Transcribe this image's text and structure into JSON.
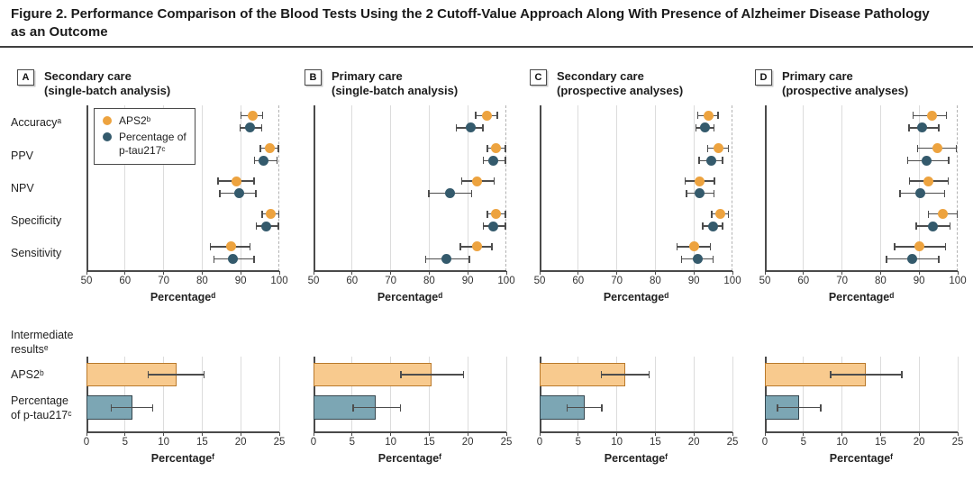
{
  "figure": {
    "title": "Figure 2. Performance Comparison of the Blood Tests Using the 2 Cutoff-Value Approach Along With Presence of Alzheimer Disease Pathology\nas an Outcome"
  },
  "legend": {
    "items": [
      {
        "label": "APS2ᵇ",
        "series": "aps2"
      },
      {
        "label": "Percentage of\np-tau217ᶜ",
        "series": "ptau217"
      }
    ]
  },
  "labels": {
    "metrics": [
      "Accuracyᵃ",
      "PPV",
      "NPV",
      "Specificity",
      "Sensitivity"
    ],
    "intermediate": "Intermediate\nresultsᵉ",
    "bar_rows": [
      "APS2ᵇ",
      "Percentage\nof p-tau217ᶜ"
    ]
  },
  "colors": {
    "aps2": "#EDA33F",
    "ptau217": "#345A6C",
    "bar_aps2_fill": "#F8CA8E",
    "bar_aps2_border": "#B9792B",
    "bar_ptau_fill": "#7CA6B4",
    "bar_ptau_border": "#34454D",
    "error_bar": "#4D4D4D",
    "grid": "#DCDCDC",
    "dashed_line": "#B3B3B3",
    "axis": "#4A4A4A"
  },
  "chart_data": [
    {
      "type": "scatter",
      "subtype": "dot-with-ci",
      "panel_letter": "A",
      "title": "Secondary care\n(single-batch analysis)",
      "xlabel": "Percentageᵈ",
      "xlim": [
        50,
        100
      ],
      "xticks": [
        50,
        60,
        70,
        80,
        90,
        100
      ],
      "dashed_line_at": 100,
      "categories": [
        "Accuracyᵃ",
        "PPV",
        "NPV",
        "Specificity",
        "Sensitivity"
      ],
      "series": [
        {
          "name": "APS2ᵇ",
          "values": [
            [
              93,
              90,
              95.8
            ],
            [
              97.5,
              95,
              99.8
            ],
            [
              89,
              84,
              93.5
            ],
            [
              97.8,
              95.5,
              100
            ],
            [
              87.5,
              82,
              92.5
            ]
          ]
        },
        {
          "name": "Percentage of p-tau217ᶜ",
          "values": [
            [
              92.5,
              89.8,
              95.5
            ],
            [
              96,
              93.5,
              99.5
            ],
            [
              89.5,
              84.5,
              94
            ],
            [
              96.5,
              94,
              99.8
            ],
            [
              88,
              83,
              93.5
            ]
          ]
        }
      ]
    },
    {
      "type": "scatter",
      "subtype": "dot-with-ci",
      "panel_letter": "B",
      "title": "Primary care\n(single-batch analysis)",
      "xlabel": "Percentageᵈ",
      "xlim": [
        50,
        100
      ],
      "xticks": [
        50,
        60,
        70,
        80,
        90,
        100
      ],
      "dashed_line_at": 100,
      "categories": [
        "Accuracyᵃ",
        "PPV",
        "NPV",
        "Specificity",
        "Sensitivity"
      ],
      "series": [
        {
          "name": "APS2ᵇ",
          "values": [
            [
              95,
              92,
              97.7
            ],
            [
              97.3,
              95,
              99.8
            ],
            [
              92.4,
              88.3,
              96.9
            ],
            [
              97.3,
              95,
              99.8
            ],
            [
              92.3,
              88,
              96.3
            ]
          ]
        },
        {
          "name": "Percentage of p-tau217ᶜ",
          "values": [
            [
              90.7,
              87,
              94
            ],
            [
              96.7,
              94,
              99.8
            ],
            [
              85.4,
              79.8,
              91.1
            ],
            [
              96.7,
              94,
              99.8
            ],
            [
              84.5,
              79,
              90.5
            ]
          ]
        }
      ]
    },
    {
      "type": "scatter",
      "subtype": "dot-with-ci",
      "panel_letter": "C",
      "title": "Secondary care\n(prospective analyses)",
      "xlabel": "Percentageᵈ",
      "xlim": [
        50,
        100
      ],
      "xticks": [
        50,
        60,
        70,
        80,
        90,
        100
      ],
      "dashed_line_at": 100,
      "categories": [
        "Accuracyᵃ",
        "PPV",
        "NPV",
        "Specificity",
        "Sensitivity"
      ],
      "series": [
        {
          "name": "APS2ᵇ",
          "values": [
            [
              93.8,
              91,
              96.3
            ],
            [
              96.3,
              93.5,
              99
            ],
            [
              91.5,
              87.7,
              95.4
            ],
            [
              96.9,
              94.6,
              99
            ],
            [
              90,
              85.6,
              94.4
            ]
          ]
        },
        {
          "name": "Percentage of p-tau217ᶜ",
          "values": [
            [
              92.8,
              90.5,
              95.3
            ],
            [
              94.6,
              91.3,
              97.5
            ],
            [
              91.5,
              88,
              95.3
            ],
            [
              94.9,
              92.2,
              97.5
            ],
            [
              91,
              86.8,
              95
            ]
          ]
        }
      ]
    },
    {
      "type": "scatter",
      "subtype": "dot-with-ci",
      "panel_letter": "D",
      "title": "Primary care\n(prospective analyses)",
      "xlabel": "Percentageᵈ",
      "xlim": [
        50,
        100
      ],
      "xticks": [
        50,
        60,
        70,
        80,
        90,
        100
      ],
      "dashed_line_at": 100,
      "categories": [
        "Accuracyᵃ",
        "PPV",
        "NPV",
        "Specificity",
        "Sensitivity"
      ],
      "series": [
        {
          "name": "APS2ᵇ",
          "values": [
            [
              93.3,
              88.3,
              97.1
            ],
            [
              94.8,
              89.6,
              99.7
            ],
            [
              92.5,
              87.5,
              97.6
            ],
            [
              96.2,
              92.3,
              99.9
            ],
            [
              90,
              83.6,
              96.9
            ]
          ]
        },
        {
          "name": "Percentage of p-tau217ᶜ",
          "values": [
            [
              90.8,
              87.3,
              95.2
            ],
            [
              91.9,
              87,
              97.7
            ],
            [
              90.3,
              85,
              96.7
            ],
            [
              93.6,
              89.2,
              98.1
            ],
            [
              88.3,
              81.5,
              95.2
            ]
          ]
        }
      ]
    },
    {
      "type": "bar",
      "subtype": "horizontal-bar-with-ci",
      "group": "Intermediate resultsᵉ — Secondary care (single-batch analysis)",
      "xlabel": "Percentageᶠ",
      "xlim": [
        0,
        25
      ],
      "xticks": [
        0,
        5,
        10,
        15,
        20,
        25
      ],
      "categories": [
        "APS2ᵇ",
        "Percentage of p-tau217ᶜ"
      ],
      "values": [
        [
          11.7,
          8,
          15.3
        ],
        [
          6,
          3.2,
          8.6
        ]
      ]
    },
    {
      "type": "bar",
      "subtype": "horizontal-bar-with-ci",
      "group": "Intermediate resultsᵉ — Primary care (single-batch analysis)",
      "xlabel": "Percentageᶠ",
      "xlim": [
        0,
        25
      ],
      "xticks": [
        0,
        5,
        10,
        15,
        20,
        25
      ],
      "categories": [
        "APS2ᵇ",
        "Percentage of p-tau217ᶜ"
      ],
      "values": [
        [
          15.3,
          11.3,
          19.5
        ],
        [
          8.1,
          5.1,
          11.3
        ]
      ]
    },
    {
      "type": "bar",
      "subtype": "horizontal-bar-with-ci",
      "group": "Intermediate resultsᵉ — Secondary care (prospective analyses)",
      "xlabel": "Percentageᶠ",
      "xlim": [
        0,
        25
      ],
      "xticks": [
        0,
        5,
        10,
        15,
        20,
        25
      ],
      "categories": [
        "APS2ᵇ",
        "Percentage of p-tau217ᶜ"
      ],
      "values": [
        [
          11.1,
          8,
          14.2
        ],
        [
          5.8,
          3.5,
          8.1
        ]
      ]
    },
    {
      "type": "bar",
      "subtype": "horizontal-bar-with-ci",
      "group": "Intermediate resultsᵉ — Primary care (prospective analyses)",
      "xlabel": "Percentageᶠ",
      "xlim": [
        0,
        25
      ],
      "xticks": [
        0,
        5,
        10,
        15,
        20,
        25
      ],
      "categories": [
        "APS2ᵇ",
        "Percentage of p-tau217ᶜ"
      ],
      "values": [
        [
          13.1,
          8.5,
          17.8
        ],
        [
          4.4,
          1.6,
          7.3
        ]
      ]
    }
  ]
}
